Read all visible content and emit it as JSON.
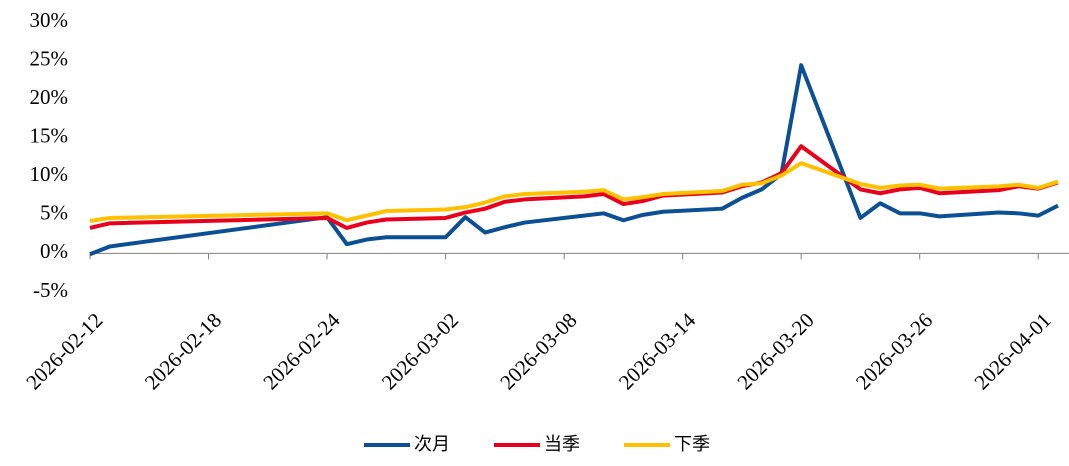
{
  "chart_data": {
    "type": "line",
    "x": [
      "2026-02-12",
      "2026-02-13",
      "2026-02-24",
      "2026-02-25",
      "2026-02-26",
      "2026-02-27",
      "2026-03-02",
      "2026-03-03",
      "2026-03-04",
      "2026-03-05",
      "2026-03-06",
      "2026-03-09",
      "2026-03-10",
      "2026-03-11",
      "2026-03-12",
      "2026-03-13",
      "2026-03-16",
      "2026-03-17",
      "2026-03-18",
      "2026-03-19",
      "2026-03-20",
      "2026-03-23",
      "2026-03-24",
      "2026-03-25",
      "2026-03-26",
      "2026-03-27",
      "2026-03-30",
      "2026-03-31",
      "2026-04-01",
      "2026-04-02"
    ],
    "series": [
      {
        "name": "次月",
        "color": "#0b4f95",
        "values": [
          -0.1,
          0.9,
          4.7,
          1.2,
          1.8,
          2.1,
          2.1,
          4.7,
          2.7,
          3.4,
          4.0,
          4.9,
          5.2,
          4.3,
          5.0,
          5.4,
          5.8,
          7.2,
          8.3,
          10.3,
          24.4,
          4.6,
          6.5,
          5.2,
          5.2,
          4.8,
          5.3,
          5.2,
          4.9,
          6.2
        ]
      },
      {
        "name": "当季",
        "color": "#e8001c",
        "values": [
          3.3,
          3.9,
          4.6,
          3.3,
          4.0,
          4.4,
          4.6,
          5.3,
          5.8,
          6.7,
          7.0,
          7.4,
          7.7,
          6.4,
          6.8,
          7.5,
          7.9,
          8.7,
          9.2,
          10.4,
          13.9,
          8.3,
          7.8,
          8.3,
          8.5,
          7.8,
          8.2,
          8.7,
          8.4,
          9.2
        ]
      },
      {
        "name": "下季",
        "color": "#ffc000",
        "values": [
          4.2,
          4.6,
          5.2,
          4.3,
          4.9,
          5.5,
          5.7,
          6.0,
          6.6,
          7.4,
          7.7,
          8.0,
          8.2,
          7.0,
          7.3,
          7.7,
          8.1,
          8.9,
          9.1,
          10.1,
          11.7,
          9.0,
          8.5,
          8.8,
          8.9,
          8.4,
          8.7,
          8.9,
          8.5,
          9.3
        ]
      }
    ],
    "xlim": [
      "2026-02-12",
      "2026-04-02"
    ],
    "xticks": [
      "2026-02-12",
      "2026-02-18",
      "2026-02-24",
      "2026-03-02",
      "2026-03-08",
      "2026-03-14",
      "2026-03-20",
      "2026-03-26",
      "2026-04-01"
    ],
    "ylim": [
      -5,
      30
    ],
    "yticks": [
      {
        "value": -5,
        "label": "-5%"
      },
      {
        "value": 0,
        "label": "0%"
      },
      {
        "value": 5,
        "label": "5%"
      },
      {
        "value": 10,
        "label": "10%"
      },
      {
        "value": 15,
        "label": "15%"
      },
      {
        "value": 20,
        "label": "20%"
      },
      {
        "value": 25,
        "label": "25%"
      },
      {
        "value": 30,
        "label": "30%"
      }
    ],
    "legend": "bottom"
  }
}
